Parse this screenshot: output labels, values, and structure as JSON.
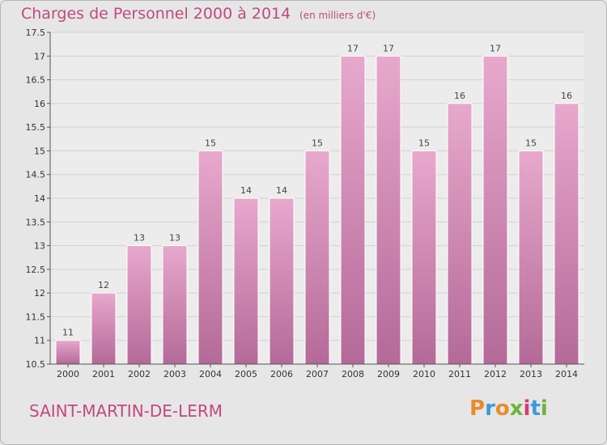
{
  "header": {
    "title": "Charges de Personnel 2000 à 2014",
    "subtitle": "(en milliers d'€)"
  },
  "footer": {
    "place": "SAINT-MARTIN-DE-LERM",
    "logo_letters": [
      {
        "char": "P",
        "color": "#e98b2a"
      },
      {
        "char": "r",
        "color": "#3b9ad9"
      },
      {
        "char": "o",
        "color": "#e98b2a"
      },
      {
        "char": "x",
        "color": "#6fb33a"
      },
      {
        "char": "i",
        "color": "#d63b76"
      },
      {
        "char": "t",
        "color": "#3b9ad9"
      },
      {
        "char": "i",
        "color": "#6fb33a"
      }
    ]
  },
  "colors": {
    "bar_top": "#e8a8cc",
    "bar_bottom": "#b46a98",
    "title": "#c0497e"
  },
  "chart_data": {
    "type": "bar",
    "title": "Charges de Personnel 2000 à 2014",
    "subtitle": "(en milliers d'€)",
    "xlabel": "",
    "ylabel": "",
    "categories": [
      "2000",
      "2001",
      "2002",
      "2003",
      "2004",
      "2005",
      "2006",
      "2007",
      "2008",
      "2009",
      "2010",
      "2011",
      "2012",
      "2013",
      "2014"
    ],
    "values": [
      11,
      12,
      13,
      13,
      15,
      14,
      14,
      15,
      17,
      17,
      15,
      16,
      17,
      15,
      16
    ],
    "data_labels": [
      "11",
      "12",
      "13",
      "13",
      "15",
      "14",
      "14",
      "15",
      "17",
      "17",
      "15",
      "16",
      "17",
      "15",
      "16"
    ],
    "ylim": [
      10.5,
      17.5
    ],
    "yticks": [
      10.5,
      11,
      11.5,
      12,
      12.5,
      13,
      13.5,
      14,
      14.5,
      15,
      15.5,
      16,
      16.5,
      17,
      17.5
    ],
    "ytick_labels": [
      "10.5",
      "11",
      "11.5",
      "12",
      "12.5",
      "13",
      "13.5",
      "14",
      "14.5",
      "15",
      "15.5",
      "16",
      "16.5",
      "17",
      "17.5"
    ],
    "grid": true
  }
}
